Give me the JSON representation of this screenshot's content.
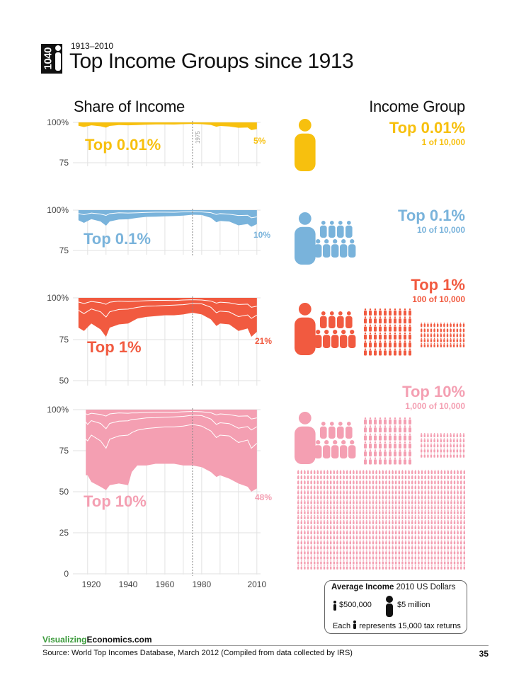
{
  "header": {
    "logo": "1040",
    "years": "1913–2010",
    "title": "Top Income Groups since 1913",
    "share_title": "Share of Income",
    "group_title": "Income Group"
  },
  "colors": {
    "top001": "#f7c00e",
    "top01": "#79b3db",
    "top1": "#f15a40",
    "top10": "#f49fb2"
  },
  "chart_data": [
    {
      "type": "area",
      "title": "Top 0.01%",
      "ylim": [
        70,
        100
      ],
      "yticks": [
        "100%",
        "75"
      ],
      "end_label": "5%",
      "marker_label": "1975",
      "x": [
        1913,
        1916,
        1920,
        1925,
        1928,
        1930,
        1935,
        1940,
        1945,
        1950,
        1955,
        1960,
        1965,
        1970,
        1975,
        1980,
        1985,
        1988,
        1990,
        1995,
        2000,
        2005,
        2007,
        2010
      ],
      "values": [
        97.5,
        96.6,
        97.8,
        97.1,
        96.1,
        97.4,
        98.0,
        97.8,
        98.0,
        98.3,
        98.5,
        98.5,
        98.4,
        98.7,
        98.9,
        98.7,
        98.1,
        96.8,
        97.4,
        97.0,
        96.0,
        96.2,
        94.3,
        95.0
      ]
    },
    {
      "type": "area",
      "title": "Top 0.1%",
      "ylim": [
        70,
        100
      ],
      "yticks": [
        "100%",
        "75"
      ],
      "end_label": "10%",
      "x": [
        1913,
        1916,
        1920,
        1925,
        1928,
        1930,
        1935,
        1940,
        1945,
        1950,
        1955,
        1960,
        1965,
        1970,
        1975,
        1980,
        1985,
        1988,
        1990,
        1995,
        2000,
        2005,
        2007,
        2010
      ],
      "values": [
        92.5,
        90.5,
        93.3,
        91.6,
        88.4,
        91.6,
        93.0,
        93.2,
        94.3,
        95.0,
        95.1,
        95.4,
        95.6,
        95.9,
        96.6,
        96.4,
        94.3,
        91.0,
        92.0,
        91.5,
        88.7,
        89.7,
        87.6,
        89.6
      ],
      "inner_line": [
        97.5,
        96.6,
        97.8,
        97.1,
        96.1,
        97.4,
        98.0,
        97.8,
        98.0,
        98.3,
        98.5,
        98.5,
        98.4,
        98.7,
        98.9,
        98.7,
        98.1,
        96.8,
        97.4,
        97.0,
        96.0,
        96.2,
        94.3,
        95.0
      ]
    },
    {
      "type": "area",
      "title": "Top 1%",
      "ylim": [
        50,
        100
      ],
      "yticks": [
        "100%",
        "75",
        "50"
      ],
      "end_label": "21%",
      "x": [
        1913,
        1916,
        1920,
        1925,
        1928,
        1930,
        1935,
        1940,
        1945,
        1950,
        1955,
        1960,
        1965,
        1970,
        1975,
        1980,
        1985,
        1988,
        1990,
        1995,
        2000,
        2005,
        2007,
        2010
      ],
      "values": [
        82,
        80,
        84.5,
        81,
        76.5,
        82,
        84,
        84.5,
        87.5,
        88.5,
        89,
        89.5,
        89.5,
        90,
        91,
        90,
        87,
        83,
        84.5,
        84,
        80,
        81.5,
        76.5,
        79.5
      ],
      "inner_lines": [
        [
          92.5,
          90.5,
          93.3,
          91.6,
          88.4,
          91.6,
          93.0,
          93.2,
          94.3,
          95.0,
          95.1,
          95.4,
          95.6,
          95.9,
          96.6,
          96.4,
          94.3,
          91.0,
          92.0,
          91.5,
          88.7,
          89.7,
          87.6,
          89.6
        ],
        [
          97.5,
          96.6,
          97.8,
          97.1,
          96.1,
          97.4,
          98.0,
          97.8,
          98.0,
          98.3,
          98.5,
          98.5,
          98.4,
          98.7,
          98.9,
          98.7,
          98.1,
          96.8,
          97.4,
          97.0,
          96.0,
          96.2,
          94.3,
          95.0
        ]
      ]
    },
    {
      "type": "area",
      "title": "Top 10%",
      "ylim": [
        0,
        100
      ],
      "yticks": [
        "100%",
        "75",
        "50",
        "25",
        "0"
      ],
      "xticks": [
        "1920",
        "1940",
        "1960",
        "1980",
        "2010"
      ],
      "xticks_values": [
        1920,
        1940,
        1960,
        1980,
        2010
      ],
      "end_label": "48%",
      "x": [
        1917,
        1918,
        1920,
        1925,
        1928,
        1930,
        1935,
        1940,
        1942,
        1945,
        1950,
        1955,
        1960,
        1965,
        1970,
        1975,
        1980,
        1985,
        1988,
        1990,
        1995,
        2000,
        2005,
        2007,
        2010
      ],
      "values": [
        60,
        60,
        56,
        53,
        51,
        54,
        55,
        54,
        62,
        66,
        66,
        67,
        67,
        67,
        66,
        66,
        65,
        62,
        59,
        60,
        58,
        55,
        53,
        50,
        52
      ],
      "inner_lines": [
        [
          82,
          81,
          84.5,
          81,
          76.5,
          82,
          84,
          84.5,
          86,
          87.5,
          88.5,
          89,
          89.5,
          89.5,
          90,
          91,
          90,
          87,
          83,
          84.5,
          84,
          80,
          81.5,
          76.5,
          79.5
        ],
        [
          92.5,
          91,
          93.3,
          91.6,
          88.4,
          91.6,
          93.0,
          93.2,
          94,
          94.3,
          95.0,
          95.1,
          95.4,
          95.6,
          95.9,
          96.6,
          96.4,
          94.3,
          91.0,
          92.0,
          91.5,
          88.7,
          89.7,
          87.6,
          89.6
        ],
        [
          97.5,
          97,
          97.8,
          97.1,
          96.1,
          97.4,
          98.0,
          97.8,
          98,
          98.0,
          98.3,
          98.5,
          98.5,
          98.4,
          98.7,
          98.9,
          98.7,
          98.1,
          96.8,
          97.4,
          97.0,
          96.0,
          96.2,
          94.3,
          95.0
        ]
      ]
    }
  ],
  "groups": [
    {
      "name": "Top 0.01%",
      "ratio": "1 of 10,000"
    },
    {
      "name": "Top 0.1%",
      "ratio": "10 of 10,000"
    },
    {
      "name": "Top 1%",
      "ratio": "100 of 10,000"
    },
    {
      "name": "Top 10%",
      "ratio": "1,000 of 10,000"
    }
  ],
  "legend": {
    "title_bold": "Average Income",
    "title_rest": " 2010 US Dollars",
    "small": "$500,000",
    "big": "$5 million",
    "each_prefix": "Each",
    "each_suffix": "represents 15,000 tax returns"
  },
  "footer": {
    "brand_a": "Visualizing",
    "brand_b": "Economics.com",
    "source": "Source: World Top Incomes Database, March 2012 (Compiled from data collected by IRS)",
    "page": "35"
  }
}
